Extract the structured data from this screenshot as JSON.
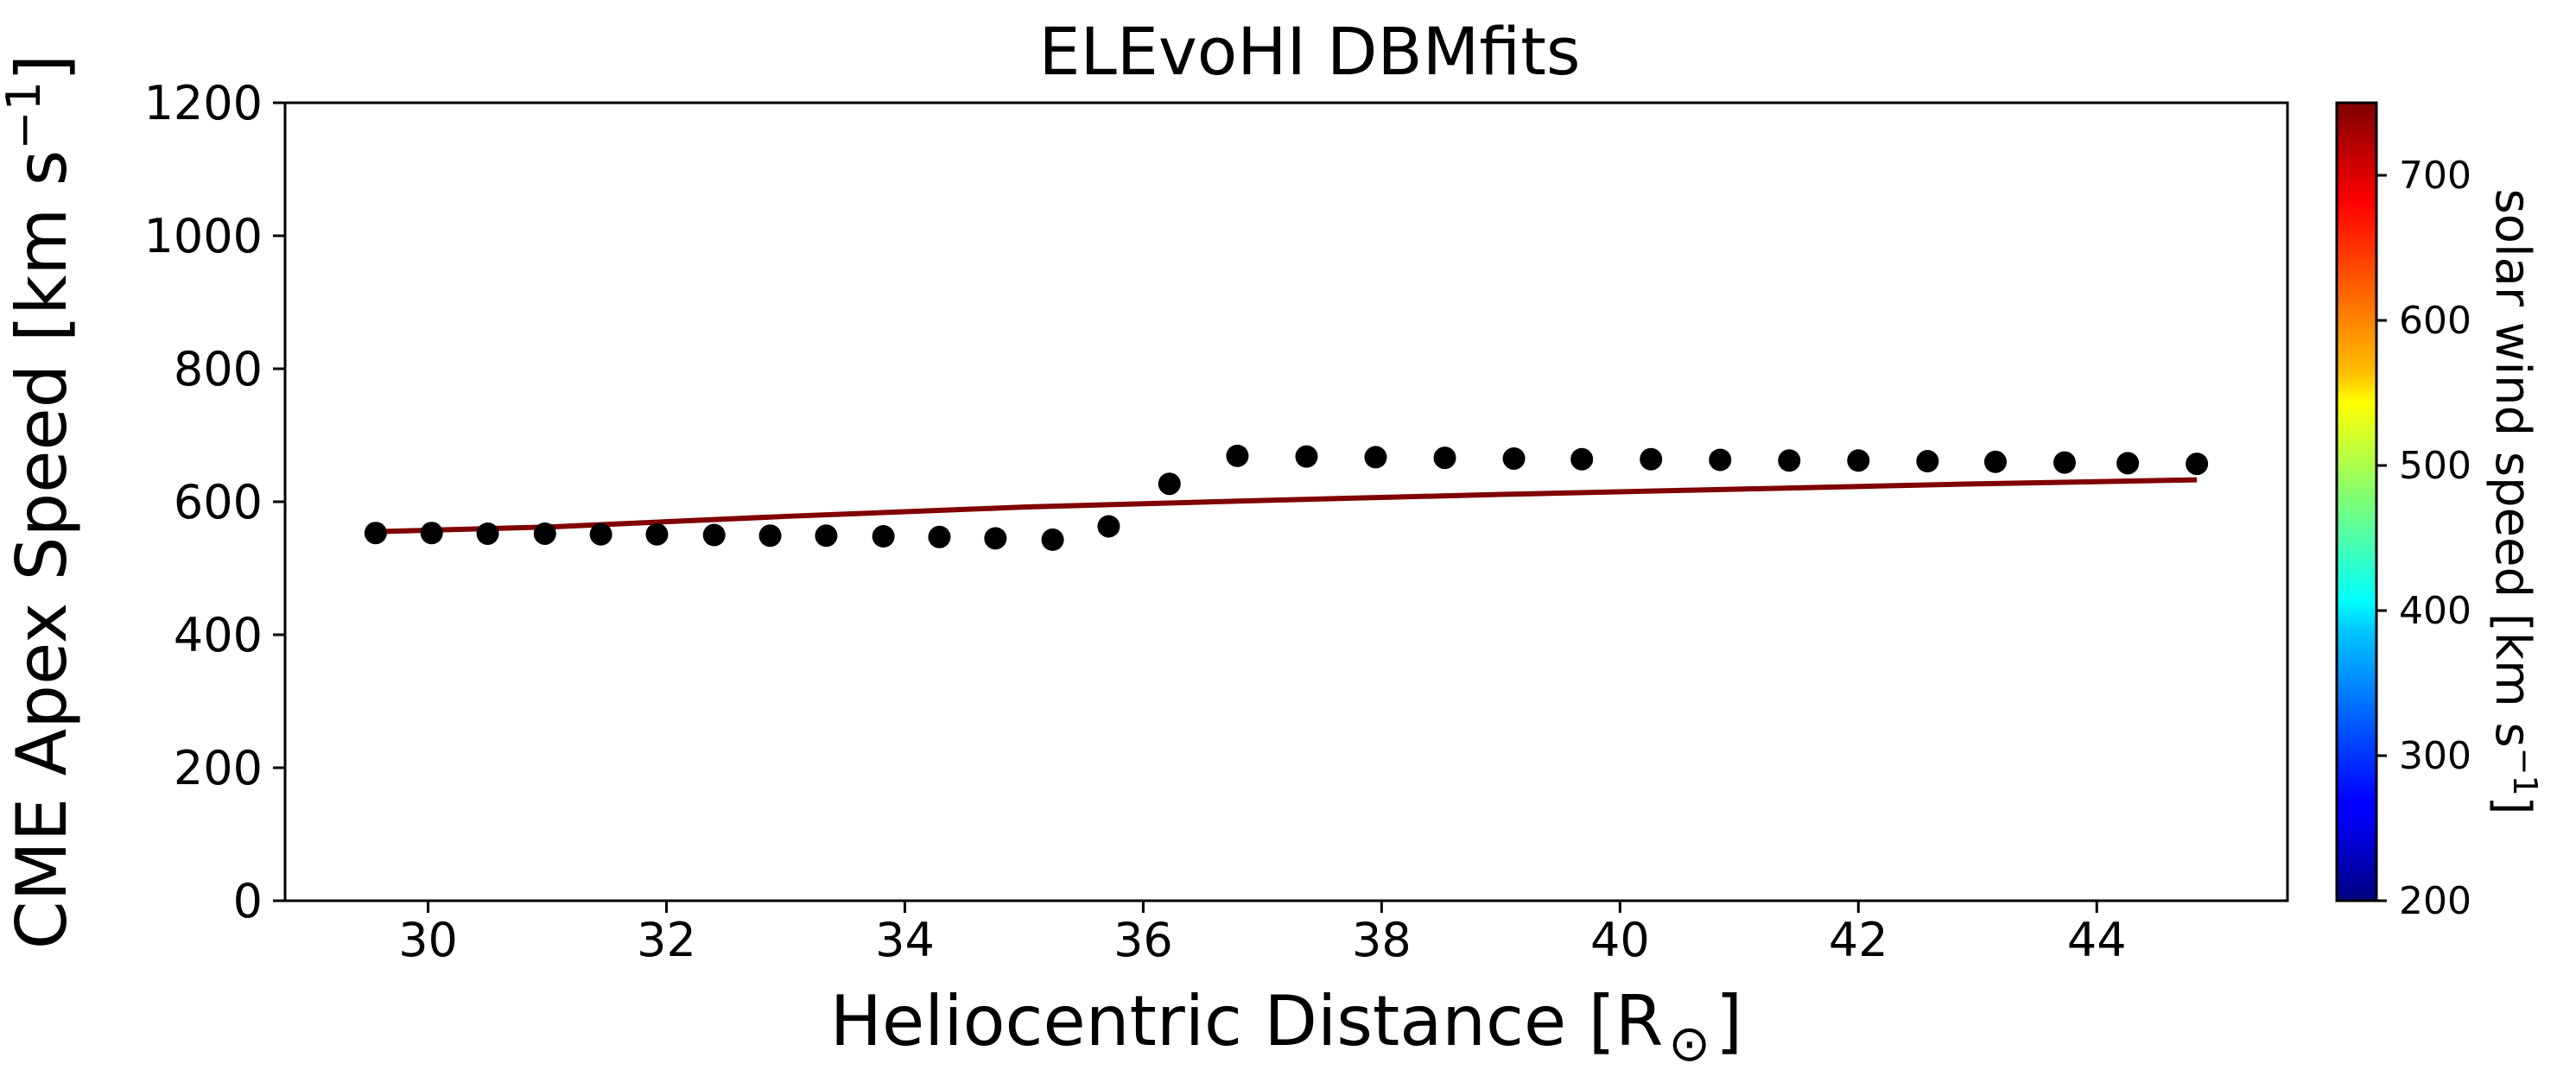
{
  "chart_data": {
    "type": "scatter",
    "title": "ELEvoHI DBMfits",
    "xlabel": "Heliocentric Distance [R",
    "xlabel_symbol": "⊙",
    "xlabel_end": "]",
    "ylabel": "CME Apex Speed [km s",
    "ylabel_sup": "−1",
    "ylabel_end": "]",
    "xlim": [
      28.8,
      45.6
    ],
    "ylim": [
      0,
      1200
    ],
    "xticks": [
      30,
      32,
      34,
      36,
      38,
      40,
      42,
      44
    ],
    "yticks": [
      0,
      200,
      400,
      600,
      800,
      1000,
      1200
    ],
    "grid": false,
    "series": [
      {
        "kind": "scatter",
        "color": "#000000",
        "x": [
          29.56,
          30.03,
          30.5,
          30.98,
          31.45,
          31.92,
          32.4,
          32.87,
          33.34,
          33.82,
          34.29,
          34.76,
          35.24,
          35.71,
          36.22,
          36.79,
          37.37,
          37.95,
          38.53,
          39.11,
          39.68,
          40.26,
          40.84,
          41.42,
          42.0,
          42.58,
          43.15,
          43.73,
          44.26,
          44.84
        ],
        "y": [
          553,
          553,
          552,
          552,
          551,
          551,
          550,
          549,
          549,
          548,
          547,
          545,
          543,
          563,
          627,
          669,
          668,
          667,
          666,
          665,
          664,
          664,
          663,
          662,
          662,
          661,
          660,
          659,
          658,
          657
        ]
      },
      {
        "kind": "line",
        "color": "#800000",
        "x": [
          29.56,
          31.0,
          33.0,
          35.0,
          37.0,
          39.0,
          41.0,
          43.0,
          44.84
        ],
        "y": [
          555,
          562,
          578,
          592,
          602,
          611,
          619,
          627,
          633
        ]
      }
    ],
    "colorbar": {
      "label": "solar wind speed [km s",
      "label_sup": "−1",
      "label_end": "]",
      "range": [
        200,
        750
      ],
      "ticks": [
        200,
        300,
        400,
        500,
        600,
        700
      ],
      "colormap": "jet"
    }
  }
}
